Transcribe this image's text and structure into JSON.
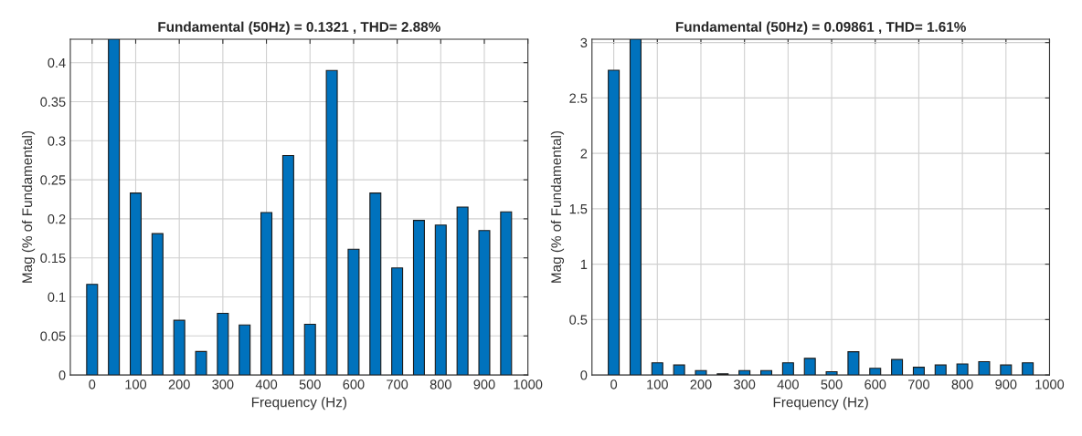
{
  "chart_data": [
    {
      "type": "bar",
      "title": "Fundamental (50Hz) = 0.1321 , THD= 2.88%",
      "xlabel": "Frequency (Hz)",
      "ylabel": "Mag (% of Fundamental)",
      "x": [
        0,
        50,
        100,
        150,
        200,
        250,
        300,
        350,
        400,
        450,
        500,
        550,
        600,
        650,
        700,
        750,
        800,
        850,
        900,
        950
      ],
      "values": [
        0.116,
        0.43,
        0.233,
        0.181,
        0.07,
        0.03,
        0.079,
        0.064,
        0.208,
        0.281,
        0.065,
        0.39,
        0.161,
        0.233,
        0.137,
        0.198,
        0.192,
        0.215,
        0.185,
        0.209
      ],
      "color": "#0072bd",
      "xlim": [
        -50,
        1000
      ],
      "ylim": [
        0,
        0.43
      ],
      "xticks": [
        0,
        100,
        200,
        300,
        400,
        500,
        600,
        700,
        800,
        900,
        1000
      ],
      "yticks": [
        0,
        0.05,
        0.1,
        0.15,
        0.2,
        0.25,
        0.3,
        0.35,
        0.4
      ],
      "grid": true
    },
    {
      "type": "bar",
      "title": "Fundamental (50Hz) = 0.09861 , THD= 1.61%",
      "xlabel": "Frequency (Hz)",
      "ylabel": "Mag (% of Fundamental)",
      "x": [
        0,
        50,
        100,
        150,
        200,
        250,
        300,
        350,
        400,
        450,
        500,
        550,
        600,
        650,
        700,
        750,
        800,
        850,
        900,
        950
      ],
      "values": [
        2.75,
        3.03,
        0.11,
        0.09,
        0.04,
        0.01,
        0.04,
        0.04,
        0.11,
        0.15,
        0.03,
        0.21,
        0.06,
        0.14,
        0.07,
        0.09,
        0.1,
        0.12,
        0.09,
        0.11
      ],
      "color": "#0072bd",
      "xlim": [
        -50,
        1000
      ],
      "ylim": [
        0,
        3.03
      ],
      "xticks": [
        0,
        100,
        200,
        300,
        400,
        500,
        600,
        700,
        800,
        900,
        1000
      ],
      "yticks": [
        0,
        0.5,
        1,
        1.5,
        2,
        2.5,
        3
      ],
      "grid": true
    }
  ]
}
